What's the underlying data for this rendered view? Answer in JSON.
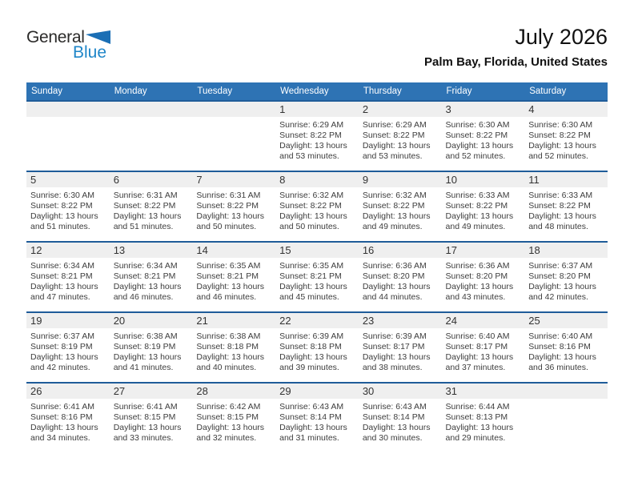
{
  "brand": {
    "name_top": "General",
    "name_bottom": "Blue",
    "triangle_icon": "blue-wedge-triangle"
  },
  "title": "July 2026",
  "location": "Palm Bay, Florida, United States",
  "weekdays": [
    "Sunday",
    "Monday",
    "Tuesday",
    "Wednesday",
    "Thursday",
    "Friday",
    "Saturday"
  ],
  "colors": {
    "header_bar": "#2e73b4",
    "week_divider": "#1f5c99",
    "day_number_band": "#efefef",
    "logo_blue_text": "#1f86c8",
    "logo_triangle": "#1b6fb5",
    "weekday_text": "#ffffff",
    "detail_text": "#3d3d3d"
  },
  "weeks": [
    {
      "cells": [
        {
          "day": ""
        },
        {
          "day": ""
        },
        {
          "day": ""
        },
        {
          "day": "1",
          "sunrise": "Sunrise: 6:29 AM",
          "sunset": "Sunset: 8:22 PM",
          "daylight1": "Daylight: 13 hours",
          "daylight2": "and 53 minutes."
        },
        {
          "day": "2",
          "sunrise": "Sunrise: 6:29 AM",
          "sunset": "Sunset: 8:22 PM",
          "daylight1": "Daylight: 13 hours",
          "daylight2": "and 53 minutes."
        },
        {
          "day": "3",
          "sunrise": "Sunrise: 6:30 AM",
          "sunset": "Sunset: 8:22 PM",
          "daylight1": "Daylight: 13 hours",
          "daylight2": "and 52 minutes."
        },
        {
          "day": "4",
          "sunrise": "Sunrise: 6:30 AM",
          "sunset": "Sunset: 8:22 PM",
          "daylight1": "Daylight: 13 hours",
          "daylight2": "and 52 minutes."
        }
      ]
    },
    {
      "cells": [
        {
          "day": "5",
          "sunrise": "Sunrise: 6:30 AM",
          "sunset": "Sunset: 8:22 PM",
          "daylight1": "Daylight: 13 hours",
          "daylight2": "and 51 minutes."
        },
        {
          "day": "6",
          "sunrise": "Sunrise: 6:31 AM",
          "sunset": "Sunset: 8:22 PM",
          "daylight1": "Daylight: 13 hours",
          "daylight2": "and 51 minutes."
        },
        {
          "day": "7",
          "sunrise": "Sunrise: 6:31 AM",
          "sunset": "Sunset: 8:22 PM",
          "daylight1": "Daylight: 13 hours",
          "daylight2": "and 50 minutes."
        },
        {
          "day": "8",
          "sunrise": "Sunrise: 6:32 AM",
          "sunset": "Sunset: 8:22 PM",
          "daylight1": "Daylight: 13 hours",
          "daylight2": "and 50 minutes."
        },
        {
          "day": "9",
          "sunrise": "Sunrise: 6:32 AM",
          "sunset": "Sunset: 8:22 PM",
          "daylight1": "Daylight: 13 hours",
          "daylight2": "and 49 minutes."
        },
        {
          "day": "10",
          "sunrise": "Sunrise: 6:33 AM",
          "sunset": "Sunset: 8:22 PM",
          "daylight1": "Daylight: 13 hours",
          "daylight2": "and 49 minutes."
        },
        {
          "day": "11",
          "sunrise": "Sunrise: 6:33 AM",
          "sunset": "Sunset: 8:22 PM",
          "daylight1": "Daylight: 13 hours",
          "daylight2": "and 48 minutes."
        }
      ]
    },
    {
      "cells": [
        {
          "day": "12",
          "sunrise": "Sunrise: 6:34 AM",
          "sunset": "Sunset: 8:21 PM",
          "daylight1": "Daylight: 13 hours",
          "daylight2": "and 47 minutes."
        },
        {
          "day": "13",
          "sunrise": "Sunrise: 6:34 AM",
          "sunset": "Sunset: 8:21 PM",
          "daylight1": "Daylight: 13 hours",
          "daylight2": "and 46 minutes."
        },
        {
          "day": "14",
          "sunrise": "Sunrise: 6:35 AM",
          "sunset": "Sunset: 8:21 PM",
          "daylight1": "Daylight: 13 hours",
          "daylight2": "and 46 minutes."
        },
        {
          "day": "15",
          "sunrise": "Sunrise: 6:35 AM",
          "sunset": "Sunset: 8:21 PM",
          "daylight1": "Daylight: 13 hours",
          "daylight2": "and 45 minutes."
        },
        {
          "day": "16",
          "sunrise": "Sunrise: 6:36 AM",
          "sunset": "Sunset: 8:20 PM",
          "daylight1": "Daylight: 13 hours",
          "daylight2": "and 44 minutes."
        },
        {
          "day": "17",
          "sunrise": "Sunrise: 6:36 AM",
          "sunset": "Sunset: 8:20 PM",
          "daylight1": "Daylight: 13 hours",
          "daylight2": "and 43 minutes."
        },
        {
          "day": "18",
          "sunrise": "Sunrise: 6:37 AM",
          "sunset": "Sunset: 8:20 PM",
          "daylight1": "Daylight: 13 hours",
          "daylight2": "and 42 minutes."
        }
      ]
    },
    {
      "cells": [
        {
          "day": "19",
          "sunrise": "Sunrise: 6:37 AM",
          "sunset": "Sunset: 8:19 PM",
          "daylight1": "Daylight: 13 hours",
          "daylight2": "and 42 minutes."
        },
        {
          "day": "20",
          "sunrise": "Sunrise: 6:38 AM",
          "sunset": "Sunset: 8:19 PM",
          "daylight1": "Daylight: 13 hours",
          "daylight2": "and 41 minutes."
        },
        {
          "day": "21",
          "sunrise": "Sunrise: 6:38 AM",
          "sunset": "Sunset: 8:18 PM",
          "daylight1": "Daylight: 13 hours",
          "daylight2": "and 40 minutes."
        },
        {
          "day": "22",
          "sunrise": "Sunrise: 6:39 AM",
          "sunset": "Sunset: 8:18 PM",
          "daylight1": "Daylight: 13 hours",
          "daylight2": "and 39 minutes."
        },
        {
          "day": "23",
          "sunrise": "Sunrise: 6:39 AM",
          "sunset": "Sunset: 8:17 PM",
          "daylight1": "Daylight: 13 hours",
          "daylight2": "and 38 minutes."
        },
        {
          "day": "24",
          "sunrise": "Sunrise: 6:40 AM",
          "sunset": "Sunset: 8:17 PM",
          "daylight1": "Daylight: 13 hours",
          "daylight2": "and 37 minutes."
        },
        {
          "day": "25",
          "sunrise": "Sunrise: 6:40 AM",
          "sunset": "Sunset: 8:16 PM",
          "daylight1": "Daylight: 13 hours",
          "daylight2": "and 36 minutes."
        }
      ]
    },
    {
      "cells": [
        {
          "day": "26",
          "sunrise": "Sunrise: 6:41 AM",
          "sunset": "Sunset: 8:16 PM",
          "daylight1": "Daylight: 13 hours",
          "daylight2": "and 34 minutes."
        },
        {
          "day": "27",
          "sunrise": "Sunrise: 6:41 AM",
          "sunset": "Sunset: 8:15 PM",
          "daylight1": "Daylight: 13 hours",
          "daylight2": "and 33 minutes."
        },
        {
          "day": "28",
          "sunrise": "Sunrise: 6:42 AM",
          "sunset": "Sunset: 8:15 PM",
          "daylight1": "Daylight: 13 hours",
          "daylight2": "and 32 minutes."
        },
        {
          "day": "29",
          "sunrise": "Sunrise: 6:43 AM",
          "sunset": "Sunset: 8:14 PM",
          "daylight1": "Daylight: 13 hours",
          "daylight2": "and 31 minutes."
        },
        {
          "day": "30",
          "sunrise": "Sunrise: 6:43 AM",
          "sunset": "Sunset: 8:14 PM",
          "daylight1": "Daylight: 13 hours",
          "daylight2": "and 30 minutes."
        },
        {
          "day": "31",
          "sunrise": "Sunrise: 6:44 AM",
          "sunset": "Sunset: 8:13 PM",
          "daylight1": "Daylight: 13 hours",
          "daylight2": "and 29 minutes."
        },
        {
          "day": ""
        }
      ]
    }
  ]
}
